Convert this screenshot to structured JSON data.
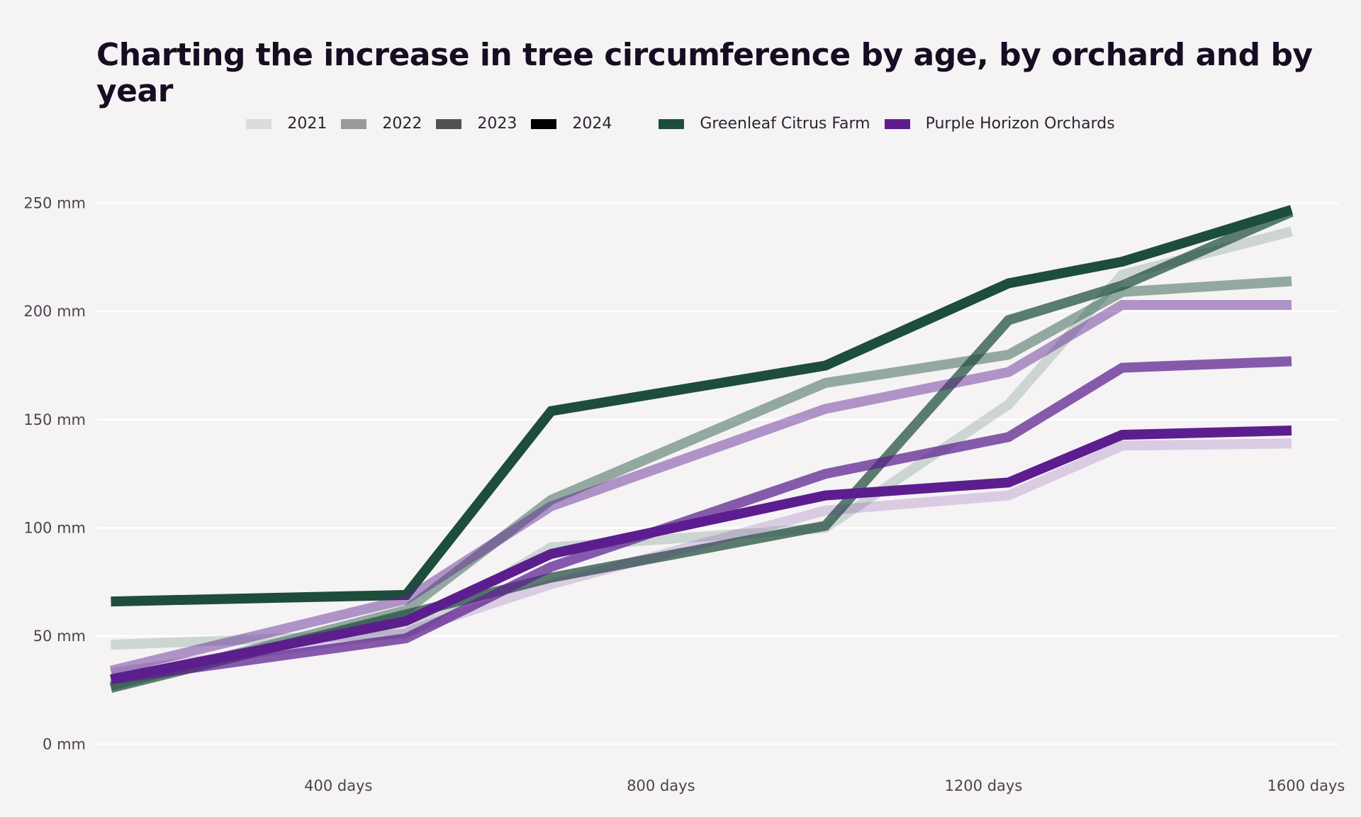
{
  "chart_data": {
    "type": "line",
    "title": "Charting the increase in tree circumference by age, by orchard and by year",
    "xlabel": "",
    "ylabel": "",
    "x_tick_labels": [
      "400 days",
      "800 days",
      "1200 days",
      "1600 days"
    ],
    "x_ticks": [
      400,
      800,
      1200,
      1600
    ],
    "y_tick_labels": [
      "0 mm",
      "50 mm",
      "100 mm",
      "150 mm",
      "200 mm",
      "250 mm"
    ],
    "y_ticks": [
      0,
      50,
      100,
      150,
      200,
      250
    ],
    "xlim": [
      100,
      1640
    ],
    "ylim": [
      -10,
      262
    ],
    "grid": true,
    "legend_position": "top-center",
    "legend": {
      "years": [
        {
          "label": "2021",
          "color": "#dcdcdc"
        },
        {
          "label": "2022",
          "color": "#999999"
        },
        {
          "label": "2023",
          "color": "#525252"
        },
        {
          "label": "2024",
          "color": "#000000"
        }
      ],
      "orchards": [
        {
          "label": "Greenleaf Citrus Farm",
          "color": "#1d4d3c"
        },
        {
          "label": "Purple Horizon Orchards",
          "color": "#5c1e8e"
        }
      ]
    },
    "x": [
      118,
      484,
      664,
      1004,
      1231,
      1372,
      1582
    ],
    "series": [
      {
        "orchard": "Greenleaf Citrus Farm",
        "year": "2021",
        "color": "#1d4d3c",
        "opacity": 0.18,
        "values": [
          46,
          51,
          91,
          100,
          157,
          217,
          237
        ]
      },
      {
        "orchard": "Greenleaf Citrus Farm",
        "year": "2022",
        "color": "#1d4d3c",
        "opacity": 0.45,
        "values": [
          27,
          62,
          113,
          167,
          180,
          209,
          214
        ]
      },
      {
        "orchard": "Greenleaf Citrus Farm",
        "year": "2023",
        "color": "#1d4d3c",
        "opacity": 0.72,
        "values": [
          26,
          60,
          77,
          101,
          196,
          212,
          246
        ]
      },
      {
        "orchard": "Greenleaf Citrus Farm",
        "year": "2024",
        "color": "#1d4d3c",
        "opacity": 1.0,
        "values": [
          66,
          69,
          154,
          175,
          213,
          223,
          247
        ]
      },
      {
        "orchard": "Purple Horizon Orchards",
        "year": "2021",
        "color": "#5c1e8e",
        "opacity": 0.18,
        "values": [
          33,
          52,
          74,
          108,
          115,
          138,
          139
        ]
      },
      {
        "orchard": "Purple Horizon Orchards",
        "year": "2022",
        "color": "#5c1e8e",
        "opacity": 0.45,
        "values": [
          34,
          67,
          110,
          155,
          172,
          203,
          203
        ]
      },
      {
        "orchard": "Purple Horizon Orchards",
        "year": "2023",
        "color": "#5c1e8e",
        "opacity": 0.72,
        "values": [
          30,
          49,
          82,
          125,
          142,
          174,
          177
        ]
      },
      {
        "orchard": "Purple Horizon Orchards",
        "year": "2024",
        "color": "#5c1e8e",
        "opacity": 1.0,
        "values": [
          30,
          57,
          88,
          115,
          121,
          143,
          145
        ]
      }
    ]
  }
}
